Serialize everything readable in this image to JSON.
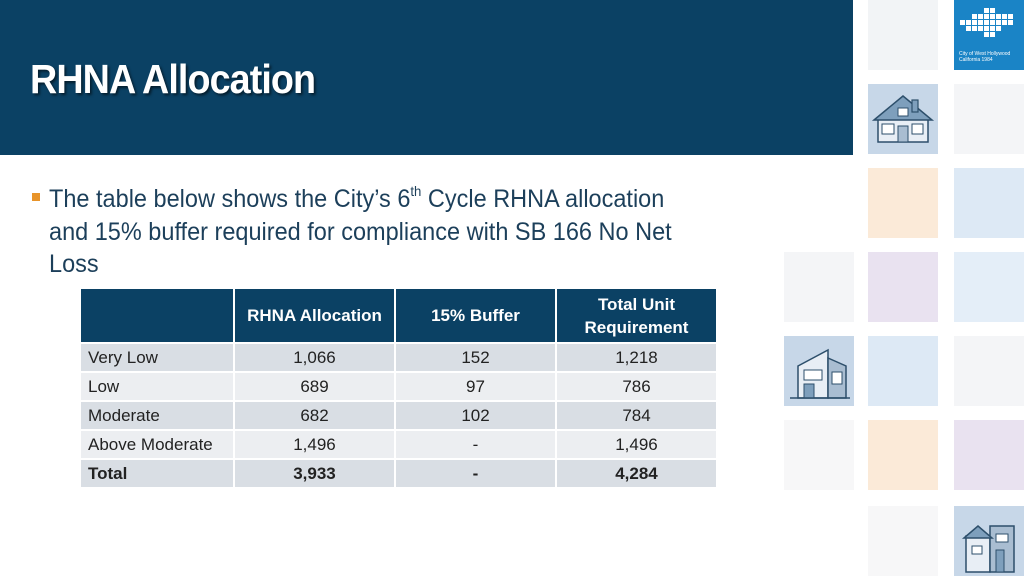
{
  "header": {
    "title": "RHNA Allocation"
  },
  "logo": {
    "text": "City of West Hollywood California 1984"
  },
  "bullet": {
    "text_before": "The table below shows the City’s 6",
    "superscript": "th",
    "text_after": " Cycle RHNA allocation and 15% buffer required for compliance with SB 166 No Net Loss"
  },
  "table": {
    "headers": [
      "",
      "RHNA Allocation",
      "15% Buffer",
      "Total Unit Requirement"
    ],
    "rows": [
      [
        "Very Low",
        "1,066",
        "152",
        "1,218"
      ],
      [
        "Low",
        "689",
        "97",
        "786"
      ],
      [
        "Moderate",
        "682",
        "102",
        "784"
      ],
      [
        "Above Moderate",
        "1,496",
        "-",
        "1,496"
      ],
      [
        "Total",
        "3,933",
        "-",
        "4,284"
      ]
    ]
  },
  "colors": {
    "header_bg": "#0b4164",
    "bullet": "#e8942a",
    "text": "#1c3f5a",
    "logo_bg": "#1a84c6"
  },
  "icons": [
    "house-icon",
    "modern-house-icon",
    "townhouse-icon"
  ]
}
